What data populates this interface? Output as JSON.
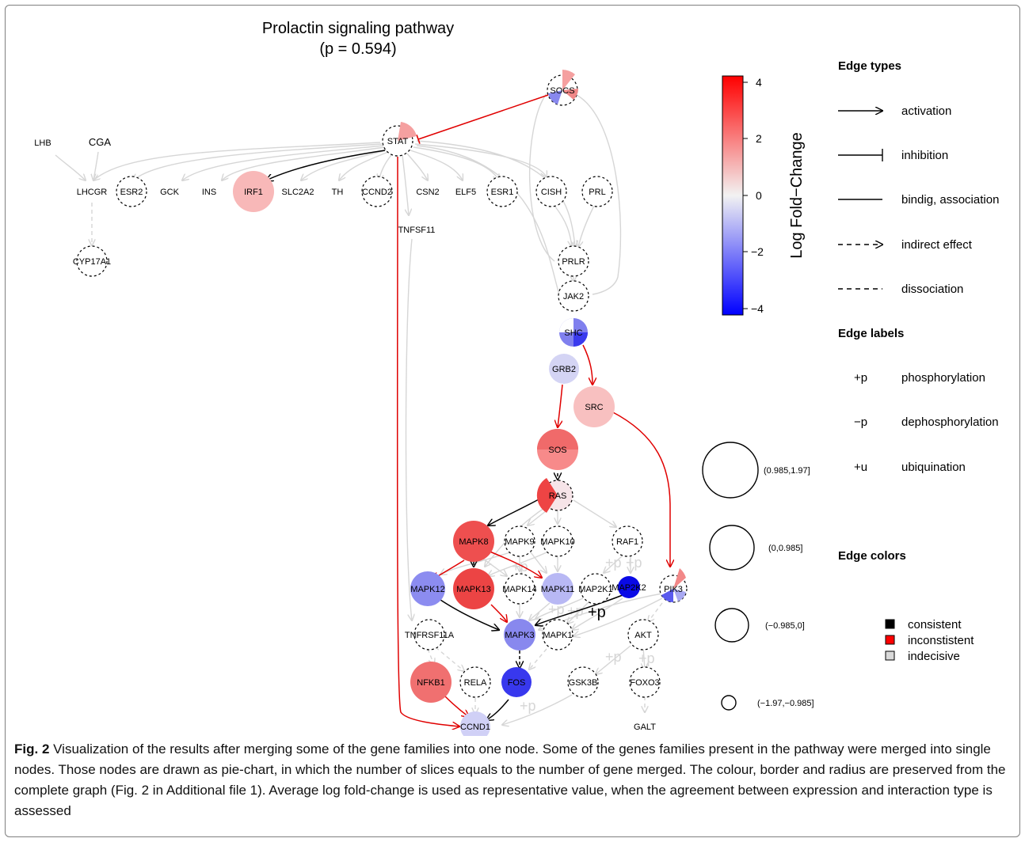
{
  "figure": {
    "title_line1": "Prolactin signaling pathway",
    "title_line2": "(p = 0.594)"
  },
  "colorbar": {
    "label": "Log Fold−Change",
    "ticks": [
      "4",
      "2",
      "0",
      "−2",
      "−4"
    ],
    "colors": {
      "max": "#ff0000",
      "mid": "#f2f2f2",
      "min": "#0000ff"
    }
  },
  "legend": {
    "edge_types_title": "Edge types",
    "edge_types": [
      "activation",
      "inhibition",
      "bindig, association",
      "indirect effect",
      "dissociation"
    ],
    "edge_labels_title": "Edge labels",
    "edge_labels": [
      {
        "symbol": "+p",
        "text": "phosphorylation"
      },
      {
        "symbol": "−p",
        "text": "dephosphorylation"
      },
      {
        "symbol": "+u",
        "text": "ubiquination"
      }
    ],
    "edge_colors_title": "Edge colors",
    "edge_colors": [
      {
        "text": "consistent",
        "color": "#000000"
      },
      {
        "text": "inconstistent",
        "color": "#ff0000"
      },
      {
        "text": "indecisive",
        "color": "#d9d9d9"
      }
    ],
    "sizes": [
      "(0.985,1.97]",
      "(0,0.985]",
      "(−0.985,0]",
      "(−1.97,−0.985]"
    ]
  },
  "nodes": [
    {
      "id": "SOCS",
      "label": "SOCS",
      "shape": "pie",
      "fill": "#ffffff"
    },
    {
      "id": "STAT",
      "label": "STAT",
      "shape": "pie",
      "fill": "#ffffff"
    },
    {
      "id": "LHB",
      "label": "LHB",
      "shape": "text"
    },
    {
      "id": "CGA",
      "label": "CGA",
      "shape": "text"
    },
    {
      "id": "LHCGR",
      "label": "LHCGR",
      "shape": "text"
    },
    {
      "id": "ESR2",
      "label": "ESR2",
      "shape": "dashed"
    },
    {
      "id": "GCK",
      "label": "GCK",
      "shape": "text"
    },
    {
      "id": "INS",
      "label": "INS",
      "shape": "text"
    },
    {
      "id": "IRF1",
      "label": "IRF1",
      "shape": "filled",
      "fill": "#f8b8b8"
    },
    {
      "id": "SLC2A2",
      "label": "SLC2A2",
      "shape": "text"
    },
    {
      "id": "TH",
      "label": "TH",
      "shape": "text"
    },
    {
      "id": "CCND2",
      "label": "CCND2",
      "shape": "dashed"
    },
    {
      "id": "CSN2",
      "label": "CSN2",
      "shape": "text"
    },
    {
      "id": "ELF5",
      "label": "ELF5",
      "shape": "text"
    },
    {
      "id": "ESR1",
      "label": "ESR1",
      "shape": "dashed"
    },
    {
      "id": "CISH",
      "label": "CISH",
      "shape": "dashed"
    },
    {
      "id": "PRL",
      "label": "PRL",
      "shape": "dashed"
    },
    {
      "id": "TNFSF11",
      "label": "TNFSF11",
      "shape": "text"
    },
    {
      "id": "CYP17A1",
      "label": "CYP17A1",
      "shape": "dashed"
    },
    {
      "id": "PRLR",
      "label": "PRLR",
      "shape": "dashed"
    },
    {
      "id": "JAK2",
      "label": "JAK2",
      "shape": "dashed"
    },
    {
      "id": "SHC",
      "label": "SHC",
      "shape": "pie",
      "fill": "#ffffff"
    },
    {
      "id": "GRB2",
      "label": "GRB2",
      "shape": "filled",
      "fill": "#d4d4f4"
    },
    {
      "id": "SRC",
      "label": "SRC",
      "shape": "filled",
      "fill": "#f8c0c0"
    },
    {
      "id": "SOS",
      "label": "SOS",
      "shape": "pie",
      "fill": "#f78a8a"
    },
    {
      "id": "RAS",
      "label": "RAS",
      "shape": "pie",
      "fill": "#f6e4e8"
    },
    {
      "id": "MAPK8",
      "label": "MAPK8",
      "shape": "filled",
      "fill": "#ee4f4f"
    },
    {
      "id": "MAPK9",
      "label": "MAPK9",
      "shape": "dashed"
    },
    {
      "id": "MAPK10",
      "label": "MAPK10",
      "shape": "dashed"
    },
    {
      "id": "RAF1",
      "label": "RAF1",
      "shape": "dashed"
    },
    {
      "id": "MAPK12",
      "label": "MAPK12",
      "shape": "filled",
      "fill": "#8c8cf0"
    },
    {
      "id": "MAPK13",
      "label": "MAPK13",
      "shape": "filled",
      "fill": "#ec4444"
    },
    {
      "id": "MAPK14",
      "label": "MAPK14",
      "shape": "dashed"
    },
    {
      "id": "MAPK11",
      "label": "MAPK11",
      "shape": "filled",
      "fill": "#b8b8f4"
    },
    {
      "id": "MAP2K1",
      "label": "MAP2K1",
      "shape": "dashed"
    },
    {
      "id": "MAP2K2",
      "label": "MAP2K2",
      "shape": "filled",
      "fill": "#0a0ae6"
    },
    {
      "id": "PIK3",
      "label": "PIK3",
      "shape": "pie",
      "fill": "#ffffff"
    },
    {
      "id": "TNFRSF11A",
      "label": "TNFRSF11A",
      "shape": "dashed"
    },
    {
      "id": "MAPK3",
      "label": "MAPK3",
      "shape": "filled",
      "fill": "#8888ee"
    },
    {
      "id": "MAPK1",
      "label": "MAPK1",
      "shape": "dashed"
    },
    {
      "id": "AKT",
      "label": "AKT",
      "shape": "dashed"
    },
    {
      "id": "NFKB1",
      "label": "NFKB1",
      "shape": "filled",
      "fill": "#f07070"
    },
    {
      "id": "RELA",
      "label": "RELA",
      "shape": "dashed"
    },
    {
      "id": "FOS",
      "label": "FOS",
      "shape": "filled",
      "fill": "#3838ee"
    },
    {
      "id": "GSK3B",
      "label": "GSK3B",
      "shape": "dashed"
    },
    {
      "id": "FOXO3",
      "label": "FOXO3",
      "shape": "dashed"
    },
    {
      "id": "CCND1",
      "label": "CCND1",
      "shape": "filled",
      "fill": "#d0d0f6"
    },
    {
      "id": "GALT",
      "label": "GALT",
      "shape": "text"
    }
  ],
  "edges": [
    {
      "from": "STAT",
      "to": "SOCS",
      "type": "inhibition",
      "color": "red"
    },
    {
      "from": "STAT",
      "to": "IRF1",
      "type": "activation",
      "color": "black"
    },
    {
      "from": "STAT",
      "to": "CCND1",
      "type": "activation",
      "color": "red"
    },
    {
      "from": "SHC",
      "to": "SRC",
      "type": "activation",
      "color": "red"
    },
    {
      "from": "GRB2",
      "to": "SOS",
      "type": "activation",
      "color": "red"
    },
    {
      "from": "SRC",
      "to": "PIK3",
      "type": "activation",
      "color": "red"
    },
    {
      "from": "SOS",
      "to": "RAS",
      "type": "indirect",
      "color": "black"
    },
    {
      "from": "RAS",
      "to": "MAPK8",
      "type": "activation",
      "color": "black"
    },
    {
      "from": "MAPK8",
      "to": "MAPK12",
      "type": "activation",
      "color": "red"
    },
    {
      "from": "MAPK8",
      "to": "MAPK11",
      "type": "activation",
      "color": "red"
    },
    {
      "from": "MAPK12",
      "to": "MAPK3",
      "type": "activation",
      "color": "black"
    },
    {
      "from": "MAPK13",
      "to": "MAPK3",
      "type": "activation",
      "color": "red"
    },
    {
      "from": "MAP2K2",
      "to": "MAPK3",
      "type": "activation",
      "color": "black",
      "label": "+p"
    },
    {
      "from": "MAPK3",
      "to": "FOS",
      "type": "indirect",
      "color": "black"
    },
    {
      "from": "NFKB1",
      "to": "CCND1",
      "type": "activation",
      "color": "red"
    },
    {
      "from": "FOS",
      "to": "CCND1",
      "type": "activation",
      "color": "black"
    }
  ],
  "caption": {
    "label": "Fig. 2",
    "text": " Visualization of the results after merging some of the gene families into one node. Some of the genes families present in the pathway were merged into single nodes. Those nodes are drawn as pie-chart, in which the number of slices equals to the number of gene merged. The colour, border and radius are preserved from the complete graph (Fig. 2 in Additional file 1). Average log fold-change is used as representative value, when the agreement between expression and interaction type is assessed"
  }
}
